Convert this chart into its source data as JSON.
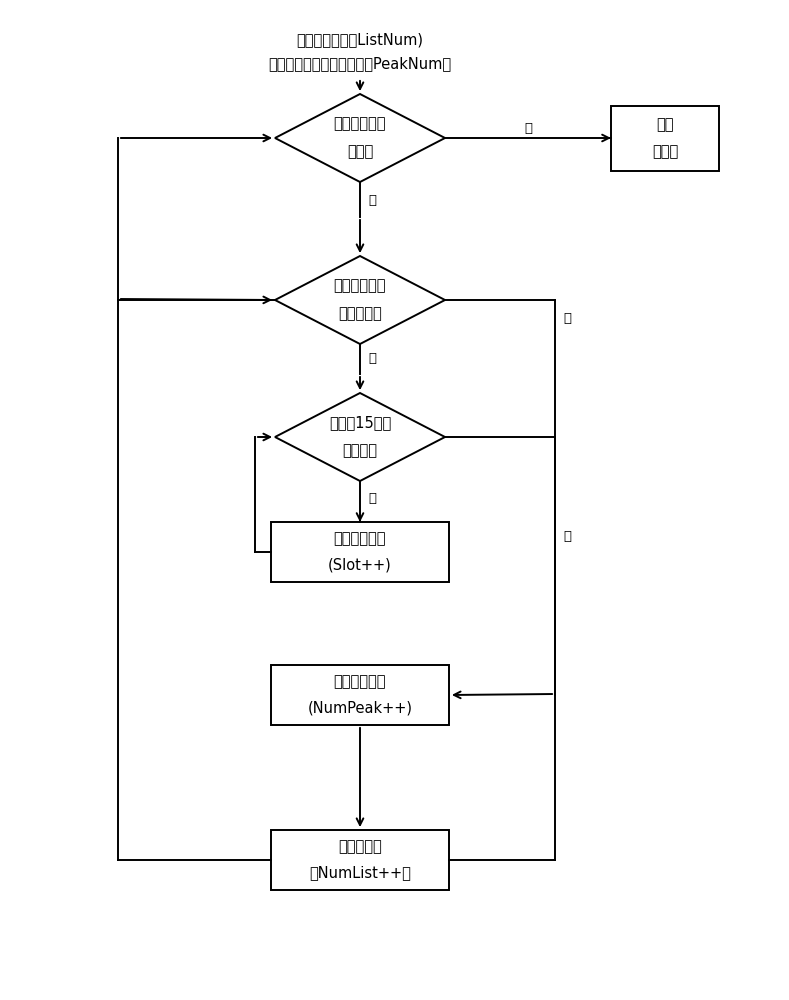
{
  "bg_color": "#ffffff",
  "text_color": "#000000",
  "line_color": "#000000",
  "font_size_main": 10.5,
  "font_size_label": 9.5,
  "start_text_1": "异频小区个数（ListNum)",
  "start_text_2": "第一阶段获得的时隙个数（PeakNum）",
  "diamond1_line1": "异频小区搜索",
  "diamond1_line2": "完成？",
  "diamond2_line1": "第一阶段时隙",
  "diamond2_line2": "搜索完成？",
  "diamond3_line1": "完成在15个时",
  "diamond3_line2": "隙搜索？",
  "box_end_line1": "上报",
  "box_end_line2": "并结束",
  "box_slot_line1": "下个帧中时隙",
  "box_slot_line2": "(Slot++)",
  "box_numpeak_line1": "下个时隙位置",
  "box_numpeak_line2": "(NumPeak++)",
  "box_numlist_line1": "下个主扰码",
  "box_numlist_line2": "（NumList++）",
  "yes": "是",
  "no": "否"
}
